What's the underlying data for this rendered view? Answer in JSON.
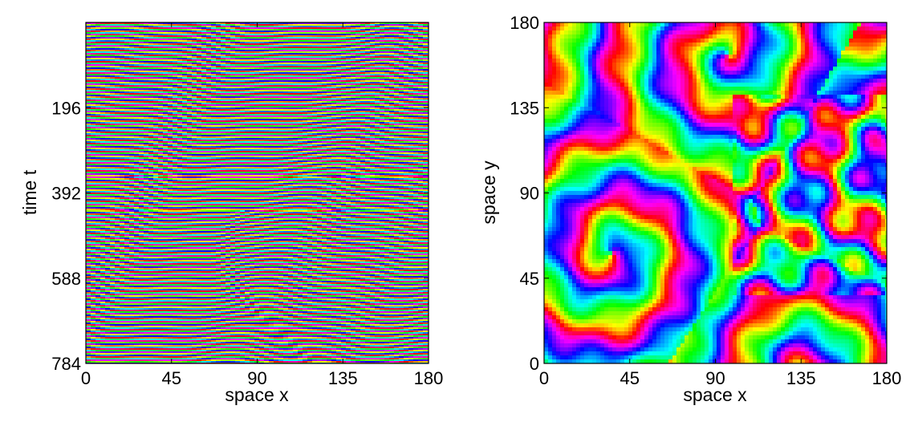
{
  "chart_data": [
    {
      "type": "heatmap",
      "description_visible": "space-time phase pattern",
      "xlabel": "space x",
      "ylabel": "time t",
      "xlim": [
        0,
        180
      ],
      "ylim": [
        784,
        0
      ],
      "x_ticks": [
        0,
        45,
        90,
        135,
        180
      ],
      "y_ticks": [
        196,
        392,
        588,
        784
      ],
      "colormap": "hsv",
      "colors": [
        "#ff0000",
        "#ffff00",
        "#00ff00",
        "#00ffff",
        "#0000ff",
        "#ff00ff"
      ]
    },
    {
      "type": "heatmap",
      "xlabel": "space x",
      "ylabel": "space y",
      "xlim": [
        0,
        180
      ],
      "ylim": [
        0,
        180
      ],
      "x_ticks": [
        0,
        45,
        90,
        135,
        180
      ],
      "y_ticks": [
        0,
        45,
        90,
        135,
        180
      ],
      "colormap": "hsv",
      "colors": [
        "#ff0000",
        "#ffff00",
        "#00ff00",
        "#00ffff",
        "#0000ff",
        "#ff00ff"
      ]
    }
  ]
}
